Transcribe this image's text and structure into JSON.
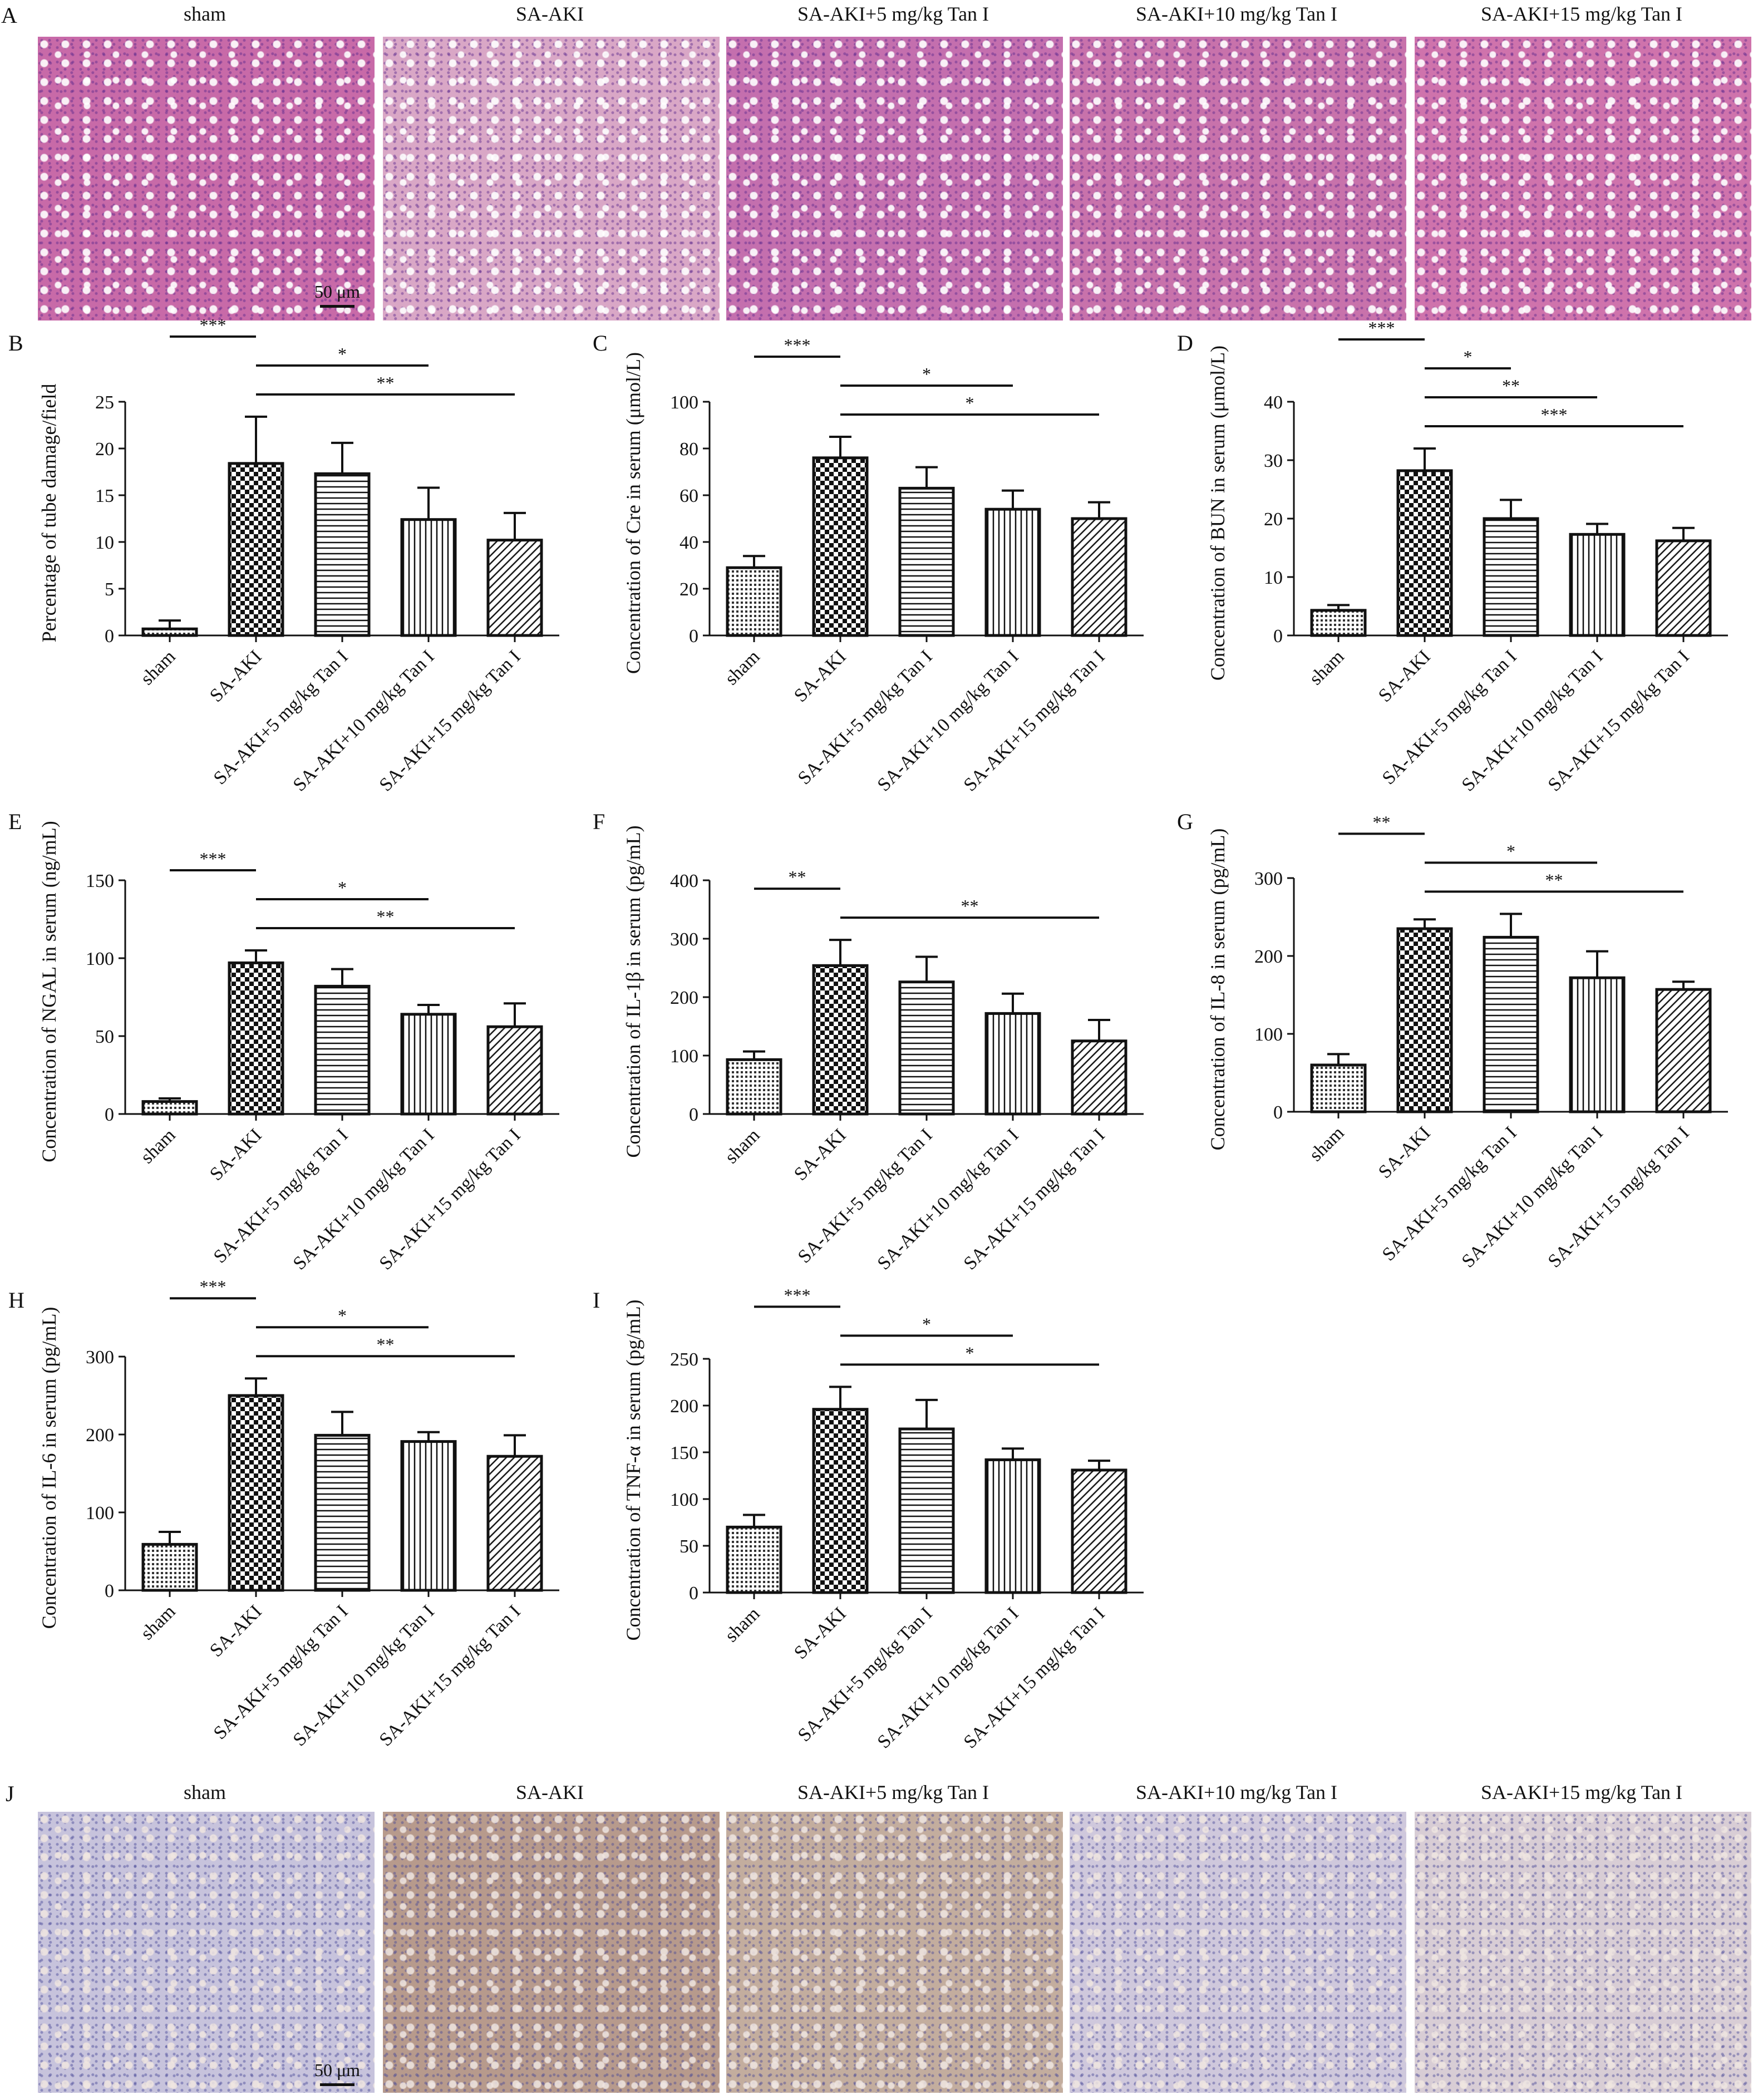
{
  "groups": [
    "sham",
    "SA-AKI",
    "SA-AKI+5 mg/kg Tan I",
    "SA-AKI+10 mg/kg Tan I",
    "SA-AKI+15 mg/kg Tan I"
  ],
  "panel_letters": {
    "A": "A",
    "J": "J"
  },
  "micrographs": {
    "A": {
      "tiles": [
        "sham",
        "SA-AKI",
        "SA-AKI+5 mg/kg Tan I",
        "SA-AKI+10 mg/kg Tan I",
        "SA-AKI+15 mg/kg Tan I"
      ],
      "colors": [
        "#c86aa8",
        "#d9a7c6",
        "#c46fae",
        "#c872ab",
        "#cf73ac"
      ],
      "scale_bar": "50 μm"
    },
    "J": {
      "tiles": [
        "sham",
        "SA-AKI",
        "SA-AKI+5 mg/kg Tan I",
        "SA-AKI+10 mg/kg Tan I",
        "SA-AKI+15 mg/kg Tan I"
      ],
      "colors": [
        "#c7c3dc",
        "#b79a8c",
        "#c3ad9e",
        "#cfc8dc",
        "#d8cdd5"
      ],
      "scale_bar": "50 μm"
    }
  },
  "chart_data": [
    {
      "id": "B",
      "letter": "B",
      "type": "bar",
      "ylabel": "Percentage of tube damage/field",
      "ylim": [
        0,
        25
      ],
      "yticks": [
        0,
        5,
        10,
        15,
        20,
        25
      ],
      "categories": [
        "sham",
        "SA-AKI",
        "SA-AKI+5 mg/kg Tan I",
        "SA-AKI+10 mg/kg Tan I",
        "SA-AKI+15 mg/kg Tan I"
      ],
      "values": [
        0.7,
        18.4,
        17.3,
        12.4,
        10.2
      ],
      "errors": [
        0.9,
        5.0,
        3.3,
        3.4,
        2.9
      ],
      "significance": [
        {
          "from": 0,
          "to": 1,
          "label": "***"
        },
        {
          "from": 1,
          "to": 3,
          "label": "*"
        },
        {
          "from": 1,
          "to": 4,
          "label": "**"
        }
      ]
    },
    {
      "id": "C",
      "letter": "C",
      "type": "bar",
      "ylabel": "Concentration of Cre in serum (μmol/L)",
      "ylim": [
        0,
        100
      ],
      "yticks": [
        0,
        20,
        40,
        60,
        80,
        100
      ],
      "categories": [
        "sham",
        "SA-AKI",
        "SA-AKI+5 mg/kg Tan I",
        "SA-AKI+10 mg/kg Tan I",
        "SA-AKI+15 mg/kg Tan I"
      ],
      "values": [
        29,
        76,
        63,
        54,
        50
      ],
      "errors": [
        5,
        9,
        9,
        8,
        7
      ],
      "significance": [
        {
          "from": 0,
          "to": 1,
          "label": "***"
        },
        {
          "from": 1,
          "to": 3,
          "label": "*"
        },
        {
          "from": 1,
          "to": 4,
          "label": "*"
        }
      ]
    },
    {
      "id": "D",
      "letter": "D",
      "type": "bar",
      "ylabel": "Concentration of BUN in serum (μmol/L)",
      "ylim": [
        0,
        40
      ],
      "yticks": [
        0,
        10,
        20,
        30,
        40
      ],
      "categories": [
        "sham",
        "SA-AKI",
        "SA-AKI+5 mg/kg Tan I",
        "SA-AKI+10 mg/kg Tan I",
        "SA-AKI+15 mg/kg Tan I"
      ],
      "values": [
        4.3,
        28.2,
        20.0,
        17.3,
        16.2
      ],
      "errors": [
        0.9,
        3.8,
        3.2,
        1.8,
        2.2
      ],
      "significance": [
        {
          "from": 0,
          "to": 1,
          "label": "***"
        },
        {
          "from": 1,
          "to": 2,
          "label": "*"
        },
        {
          "from": 1,
          "to": 3,
          "label": "**"
        },
        {
          "from": 1,
          "to": 4,
          "label": "***"
        }
      ]
    },
    {
      "id": "E",
      "letter": "E",
      "type": "bar",
      "ylabel": "Concentration of NGAL in serum (ng/mL)",
      "ylim": [
        0,
        150
      ],
      "yticks": [
        0,
        50,
        100,
        150
      ],
      "categories": [
        "sham",
        "SA-AKI",
        "SA-AKI+5 mg/kg Tan I",
        "SA-AKI+10 mg/kg Tan I",
        "SA-AKI+15 mg/kg Tan I"
      ],
      "values": [
        8,
        97,
        82,
        64,
        56
      ],
      "errors": [
        2,
        8,
        11,
        6,
        15
      ],
      "significance": [
        {
          "from": 0,
          "to": 1,
          "label": "***"
        },
        {
          "from": 1,
          "to": 3,
          "label": "*"
        },
        {
          "from": 1,
          "to": 4,
          "label": "**"
        }
      ]
    },
    {
      "id": "F",
      "letter": "F",
      "type": "bar",
      "ylabel": "Concentration of IL-1β in serum (pg/mL)",
      "ylim": [
        0,
        400
      ],
      "yticks": [
        0,
        100,
        200,
        300,
        400
      ],
      "categories": [
        "sham",
        "SA-AKI",
        "SA-AKI+5 mg/kg Tan I",
        "SA-AKI+10 mg/kg Tan I",
        "SA-AKI+15 mg/kg Tan I"
      ],
      "values": [
        93,
        254,
        226,
        172,
        125
      ],
      "errors": [
        14,
        44,
        43,
        34,
        36
      ],
      "significance": [
        {
          "from": 0,
          "to": 1,
          "label": "**"
        },
        {
          "from": 1,
          "to": 4,
          "label": "**"
        }
      ]
    },
    {
      "id": "G",
      "letter": "G",
      "type": "bar",
      "ylabel": "Concentration of IL-8 in serum (pg/mL)",
      "ylim": [
        0,
        300
      ],
      "yticks": [
        0,
        100,
        200,
        300
      ],
      "categories": [
        "sham",
        "SA-AKI",
        "SA-AKI+5 mg/kg Tan I",
        "SA-AKI+10 mg/kg Tan I",
        "SA-AKI+15 mg/kg Tan I"
      ],
      "values": [
        60,
        235,
        224,
        172,
        157
      ],
      "errors": [
        14,
        12,
        30,
        34,
        10
      ],
      "significance": [
        {
          "from": 0,
          "to": 1,
          "label": "**"
        },
        {
          "from": 1,
          "to": 3,
          "label": "*"
        },
        {
          "from": 1,
          "to": 4,
          "label": "**"
        }
      ]
    },
    {
      "id": "H",
      "letter": "H",
      "type": "bar",
      "ylabel": "Concentration of IL-6 in serum (pg/mL)",
      "ylim": [
        0,
        300
      ],
      "yticks": [
        0,
        100,
        200,
        300
      ],
      "categories": [
        "sham",
        "SA-AKI",
        "SA-AKI+5 mg/kg Tan I",
        "SA-AKI+10 mg/kg Tan I",
        "SA-AKI+15 mg/kg Tan I"
      ],
      "values": [
        59,
        250,
        199,
        191,
        172
      ],
      "errors": [
        16,
        22,
        30,
        12,
        27
      ],
      "significance": [
        {
          "from": 0,
          "to": 1,
          "label": "***"
        },
        {
          "from": 1,
          "to": 3,
          "label": "*"
        },
        {
          "from": 1,
          "to": 4,
          "label": "**"
        }
      ]
    },
    {
      "id": "I",
      "letter": "I",
      "type": "bar",
      "ylabel": "Concentration of TNF-α in serum (pg/mL)",
      "ylim": [
        0,
        250
      ],
      "yticks": [
        0,
        50,
        100,
        150,
        200,
        250
      ],
      "categories": [
        "sham",
        "SA-AKI",
        "SA-AKI+5 mg/kg Tan I",
        "SA-AKI+10 mg/kg Tan I",
        "SA-AKI+15 mg/kg Tan I"
      ],
      "values": [
        70,
        196,
        175,
        142,
        131
      ],
      "errors": [
        13,
        24,
        31,
        12,
        10
      ],
      "significance": [
        {
          "from": 0,
          "to": 1,
          "label": "***"
        },
        {
          "from": 1,
          "to": 3,
          "label": "*"
        },
        {
          "from": 1,
          "to": 4,
          "label": "*"
        }
      ]
    }
  ]
}
